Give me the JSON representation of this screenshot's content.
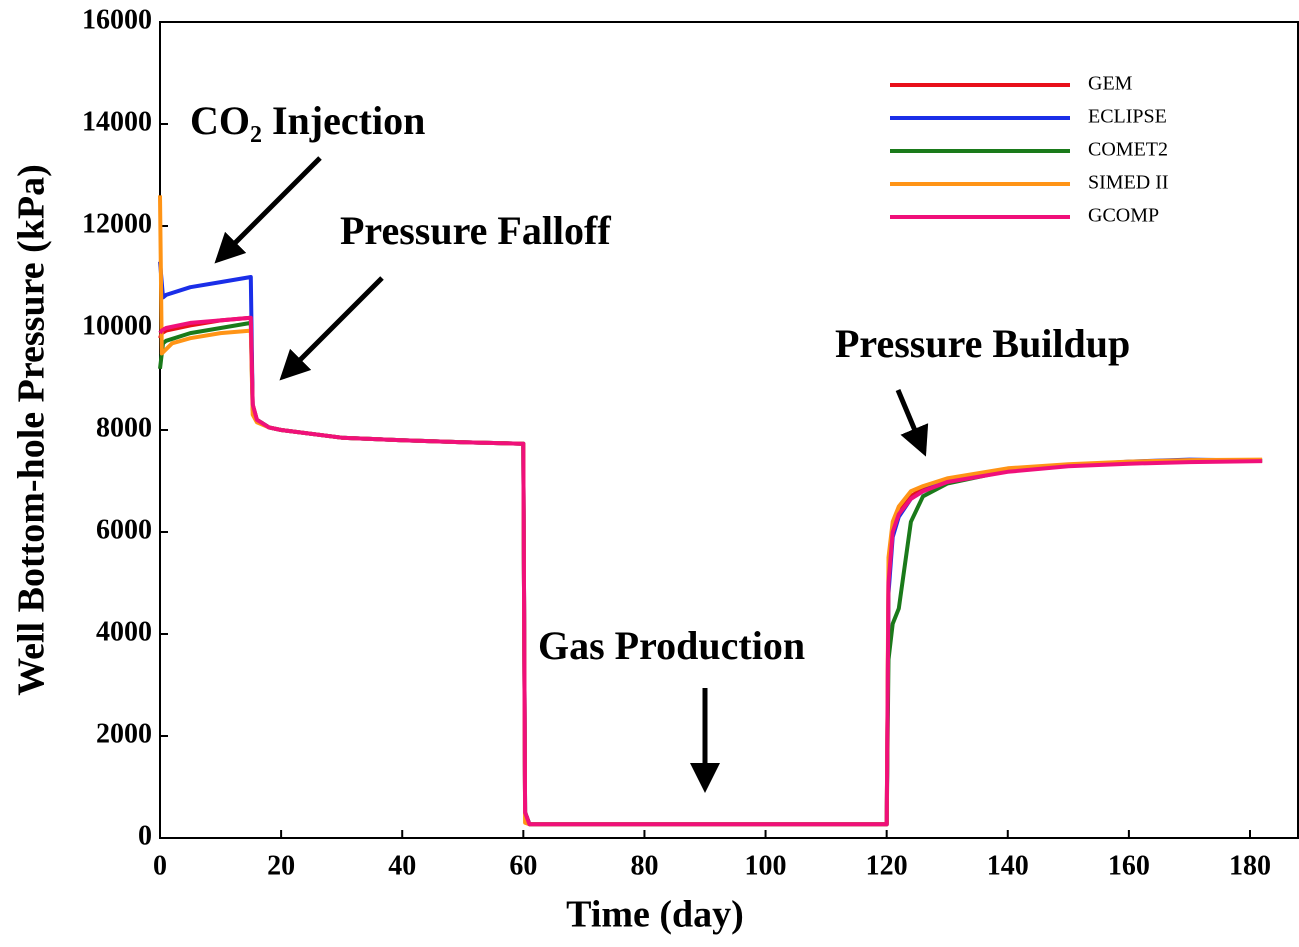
{
  "chart_data": {
    "type": "line",
    "xlabel": "Time (day)",
    "ylabel": "Well Bottom-hole Pressure (kPa)",
    "xlim": [
      0,
      188
    ],
    "ylim": [
      0,
      16000
    ],
    "xticks": [
      0,
      20,
      40,
      60,
      80,
      100,
      120,
      140,
      160,
      180
    ],
    "yticks": [
      0,
      2000,
      4000,
      6000,
      8000,
      10000,
      12000,
      14000,
      16000
    ],
    "legend": "upper right",
    "annotations": [
      {
        "text": "CO₂ Injection"
      },
      {
        "text": "Pressure Falloff"
      },
      {
        "text": "Pressure Buildup"
      },
      {
        "text": "Gas Production"
      }
    ],
    "series": [
      {
        "name": "GEM",
        "color": "#e8101a",
        "x": [
          0,
          0.3,
          1,
          5,
          10,
          15,
          15.3,
          16,
          18,
          20,
          30,
          40,
          50,
          60,
          60.3,
          61,
          90,
          120,
          120.3,
          121,
          122,
          124,
          126,
          130,
          140,
          150,
          160,
          170,
          182
        ],
        "values": [
          9800,
          9900,
          9950,
          10050,
          10150,
          10200,
          8500,
          8200,
          8050,
          8000,
          7850,
          7800,
          7760,
          7730,
          500,
          270,
          270,
          270,
          5000,
          6000,
          6400,
          6700,
          6850,
          7000,
          7200,
          7300,
          7350,
          7380,
          7400
        ]
      },
      {
        "name": "ECLIPSE",
        "color": "#1a2ee8",
        "x": [
          0,
          0.5,
          1,
          5,
          10,
          15,
          15.3,
          16,
          18,
          20,
          30,
          40,
          50,
          60,
          60.3,
          61,
          90,
          120,
          120.3,
          121,
          122,
          124,
          126,
          130,
          140,
          150,
          160,
          170,
          182
        ],
        "values": [
          11300,
          10600,
          10650,
          10800,
          10900,
          11000,
          8400,
          8200,
          8050,
          8000,
          7850,
          7800,
          7760,
          7730,
          500,
          270,
          270,
          270,
          4800,
          5900,
          6300,
          6650,
          6800,
          7000,
          7200,
          7300,
          7380,
          7420,
          7400
        ]
      },
      {
        "name": "COMET2",
        "color": "#1a7a1a",
        "x": [
          0,
          0.5,
          1,
          5,
          10,
          15,
          15.3,
          16,
          18,
          20,
          30,
          40,
          50,
          60,
          60.3,
          61,
          90,
          120,
          120.3,
          121,
          122,
          124,
          126,
          130,
          140,
          150,
          160,
          170,
          182
        ],
        "values": [
          9200,
          9700,
          9750,
          9900,
          10000,
          10100,
          8400,
          8200,
          8050,
          8000,
          7850,
          7800,
          7760,
          7730,
          500,
          270,
          270,
          270,
          3500,
          4200,
          4500,
          6200,
          6700,
          6950,
          7200,
          7300,
          7350,
          7380,
          7400
        ]
      },
      {
        "name": "SIMED II",
        "color": "#ff9416",
        "x": [
          0,
          0.3,
          2,
          5,
          10,
          15,
          15.3,
          16,
          18,
          20,
          30,
          40,
          50,
          60,
          60.3,
          61,
          90,
          120,
          120.3,
          121,
          122,
          124,
          126,
          130,
          140,
          150,
          160,
          170,
          182
        ],
        "values": [
          12600,
          9500,
          9700,
          9800,
          9900,
          9950,
          8300,
          8150,
          8050,
          8000,
          7850,
          7800,
          7760,
          7730,
          300,
          270,
          270,
          270,
          5500,
          6200,
          6500,
          6800,
          6900,
          7050,
          7250,
          7330,
          7380,
          7410,
          7420
        ]
      },
      {
        "name": "GCOMP",
        "color": "#f0107a",
        "x": [
          0,
          0.3,
          1,
          5,
          10,
          15,
          15.3,
          16,
          18,
          20,
          30,
          40,
          50,
          60,
          60.3,
          61,
          90,
          120,
          120.3,
          121,
          122,
          124,
          126,
          130,
          140,
          150,
          160,
          170,
          182
        ],
        "values": [
          9900,
          9950,
          10000,
          10100,
          10150,
          10200,
          8500,
          8200,
          8050,
          8000,
          7850,
          7800,
          7760,
          7730,
          500,
          270,
          270,
          270,
          5000,
          6000,
          6350,
          6650,
          6800,
          6980,
          7180,
          7290,
          7340,
          7370,
          7390
        ]
      }
    ]
  }
}
